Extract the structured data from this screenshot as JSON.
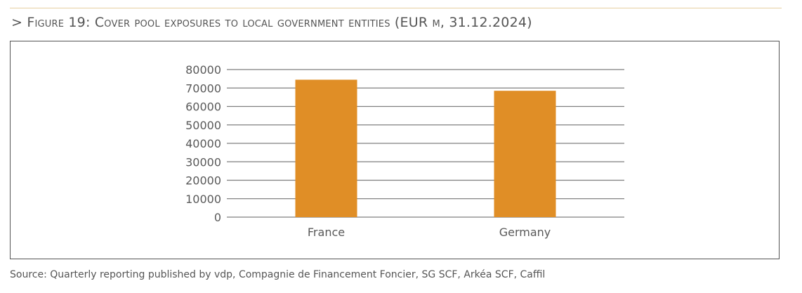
{
  "figure": {
    "title": "> Figure 19: Cover pool exposures to local government entities (EUR m, 31.12.2024)",
    "source": "Source: Quarterly reporting published by vdp, Compagnie de Financement Foncier, SG SCF, Arkéa SCF, Caffil"
  },
  "chart_data": {
    "type": "bar",
    "title": "Figure 19: Cover pool exposures to local government entities (EUR m, 31.12.2024)",
    "categories": [
      "France",
      "Germany"
    ],
    "values": [
      74500,
      68500
    ],
    "xlabel": "",
    "ylabel": "",
    "ylim": [
      0,
      80000
    ],
    "yticks": [
      "0",
      "10000",
      "20000",
      "30000",
      "40000",
      "50000",
      "60000",
      "70000",
      "80000"
    ],
    "grid": true,
    "legend": "none",
    "colors": {
      "bar": "#e08e26",
      "grid": "#7f7f7f",
      "text": "#595959"
    }
  }
}
